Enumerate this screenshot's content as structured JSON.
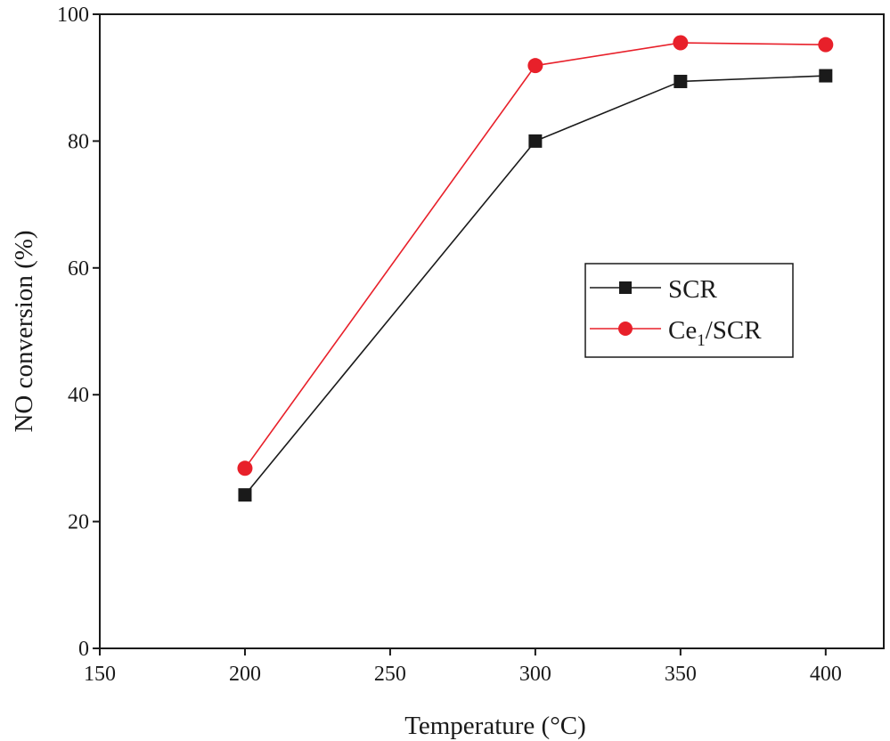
{
  "chart_data": {
    "type": "line",
    "title": "",
    "xlabel": "Temperature (°C)",
    "ylabel": "NO conversion (%)",
    "xlim": [
      150,
      420
    ],
    "ylim": [
      0,
      100
    ],
    "x_ticks": [
      150,
      200,
      250,
      300,
      350,
      400
    ],
    "y_ticks": [
      0,
      20,
      40,
      60,
      80,
      100
    ],
    "x_tick_labels": [
      "150",
      "200",
      "250",
      "300",
      "350",
      "400"
    ],
    "y_tick_labels": [
      "0",
      "20",
      "40",
      "60",
      "80",
      "100"
    ],
    "legend_position": "center-right",
    "series": [
      {
        "name": "SCR",
        "marker": "square",
        "color": "#1a1a1a",
        "x": [
          200,
          300,
          350,
          400
        ],
        "y": [
          24.2,
          80.0,
          89.4,
          90.3
        ]
      },
      {
        "name": "Ce1/SCR",
        "legend_main": "Ce",
        "legend_sub": "1",
        "legend_tail": "/SCR",
        "marker": "circle",
        "color": "#e8202a",
        "x": [
          200,
          300,
          350,
          400
        ],
        "y": [
          28.4,
          91.9,
          95.5,
          95.2
        ]
      }
    ]
  }
}
